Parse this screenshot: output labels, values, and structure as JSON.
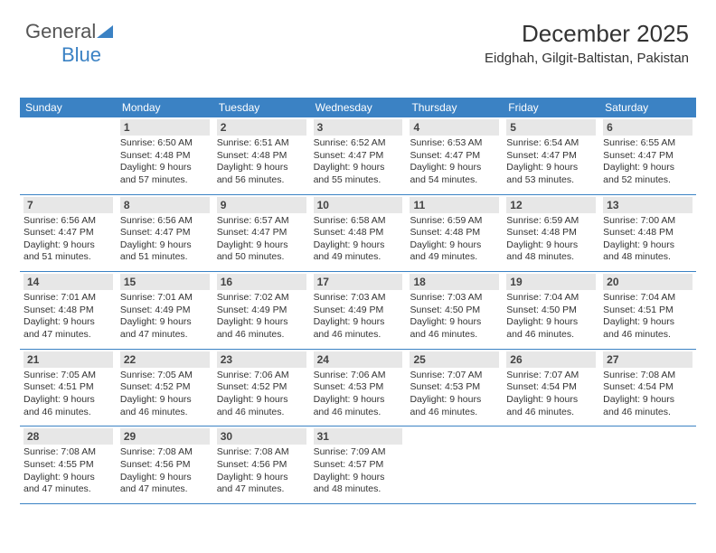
{
  "logo": {
    "part1": "General",
    "part2": "Blue"
  },
  "title": "December 2025",
  "location": "Eidghah, Gilgit-Baltistan, Pakistan",
  "colors": {
    "header_bg": "#3b82c4",
    "daynum_bg": "#e7e7e7",
    "text": "#333333",
    "logo_gray": "#555555"
  },
  "weekdays": [
    "Sunday",
    "Monday",
    "Tuesday",
    "Wednesday",
    "Thursday",
    "Friday",
    "Saturday"
  ],
  "weeks": [
    [
      {
        "num": "",
        "lines": []
      },
      {
        "num": "1",
        "lines": [
          "Sunrise: 6:50 AM",
          "Sunset: 4:48 PM",
          "Daylight: 9 hours",
          "and 57 minutes."
        ]
      },
      {
        "num": "2",
        "lines": [
          "Sunrise: 6:51 AM",
          "Sunset: 4:48 PM",
          "Daylight: 9 hours",
          "and 56 minutes."
        ]
      },
      {
        "num": "3",
        "lines": [
          "Sunrise: 6:52 AM",
          "Sunset: 4:47 PM",
          "Daylight: 9 hours",
          "and 55 minutes."
        ]
      },
      {
        "num": "4",
        "lines": [
          "Sunrise: 6:53 AM",
          "Sunset: 4:47 PM",
          "Daylight: 9 hours",
          "and 54 minutes."
        ]
      },
      {
        "num": "5",
        "lines": [
          "Sunrise: 6:54 AM",
          "Sunset: 4:47 PM",
          "Daylight: 9 hours",
          "and 53 minutes."
        ]
      },
      {
        "num": "6",
        "lines": [
          "Sunrise: 6:55 AM",
          "Sunset: 4:47 PM",
          "Daylight: 9 hours",
          "and 52 minutes."
        ]
      }
    ],
    [
      {
        "num": "7",
        "lines": [
          "Sunrise: 6:56 AM",
          "Sunset: 4:47 PM",
          "Daylight: 9 hours",
          "and 51 minutes."
        ]
      },
      {
        "num": "8",
        "lines": [
          "Sunrise: 6:56 AM",
          "Sunset: 4:47 PM",
          "Daylight: 9 hours",
          "and 51 minutes."
        ]
      },
      {
        "num": "9",
        "lines": [
          "Sunrise: 6:57 AM",
          "Sunset: 4:47 PM",
          "Daylight: 9 hours",
          "and 50 minutes."
        ]
      },
      {
        "num": "10",
        "lines": [
          "Sunrise: 6:58 AM",
          "Sunset: 4:48 PM",
          "Daylight: 9 hours",
          "and 49 minutes."
        ]
      },
      {
        "num": "11",
        "lines": [
          "Sunrise: 6:59 AM",
          "Sunset: 4:48 PM",
          "Daylight: 9 hours",
          "and 49 minutes."
        ]
      },
      {
        "num": "12",
        "lines": [
          "Sunrise: 6:59 AM",
          "Sunset: 4:48 PM",
          "Daylight: 9 hours",
          "and 48 minutes."
        ]
      },
      {
        "num": "13",
        "lines": [
          "Sunrise: 7:00 AM",
          "Sunset: 4:48 PM",
          "Daylight: 9 hours",
          "and 48 minutes."
        ]
      }
    ],
    [
      {
        "num": "14",
        "lines": [
          "Sunrise: 7:01 AM",
          "Sunset: 4:48 PM",
          "Daylight: 9 hours",
          "and 47 minutes."
        ]
      },
      {
        "num": "15",
        "lines": [
          "Sunrise: 7:01 AM",
          "Sunset: 4:49 PM",
          "Daylight: 9 hours",
          "and 47 minutes."
        ]
      },
      {
        "num": "16",
        "lines": [
          "Sunrise: 7:02 AM",
          "Sunset: 4:49 PM",
          "Daylight: 9 hours",
          "and 46 minutes."
        ]
      },
      {
        "num": "17",
        "lines": [
          "Sunrise: 7:03 AM",
          "Sunset: 4:49 PM",
          "Daylight: 9 hours",
          "and 46 minutes."
        ]
      },
      {
        "num": "18",
        "lines": [
          "Sunrise: 7:03 AM",
          "Sunset: 4:50 PM",
          "Daylight: 9 hours",
          "and 46 minutes."
        ]
      },
      {
        "num": "19",
        "lines": [
          "Sunrise: 7:04 AM",
          "Sunset: 4:50 PM",
          "Daylight: 9 hours",
          "and 46 minutes."
        ]
      },
      {
        "num": "20",
        "lines": [
          "Sunrise: 7:04 AM",
          "Sunset: 4:51 PM",
          "Daylight: 9 hours",
          "and 46 minutes."
        ]
      }
    ],
    [
      {
        "num": "21",
        "lines": [
          "Sunrise: 7:05 AM",
          "Sunset: 4:51 PM",
          "Daylight: 9 hours",
          "and 46 minutes."
        ]
      },
      {
        "num": "22",
        "lines": [
          "Sunrise: 7:05 AM",
          "Sunset: 4:52 PM",
          "Daylight: 9 hours",
          "and 46 minutes."
        ]
      },
      {
        "num": "23",
        "lines": [
          "Sunrise: 7:06 AM",
          "Sunset: 4:52 PM",
          "Daylight: 9 hours",
          "and 46 minutes."
        ]
      },
      {
        "num": "24",
        "lines": [
          "Sunrise: 7:06 AM",
          "Sunset: 4:53 PM",
          "Daylight: 9 hours",
          "and 46 minutes."
        ]
      },
      {
        "num": "25",
        "lines": [
          "Sunrise: 7:07 AM",
          "Sunset: 4:53 PM",
          "Daylight: 9 hours",
          "and 46 minutes."
        ]
      },
      {
        "num": "26",
        "lines": [
          "Sunrise: 7:07 AM",
          "Sunset: 4:54 PM",
          "Daylight: 9 hours",
          "and 46 minutes."
        ]
      },
      {
        "num": "27",
        "lines": [
          "Sunrise: 7:08 AM",
          "Sunset: 4:54 PM",
          "Daylight: 9 hours",
          "and 46 minutes."
        ]
      }
    ],
    [
      {
        "num": "28",
        "lines": [
          "Sunrise: 7:08 AM",
          "Sunset: 4:55 PM",
          "Daylight: 9 hours",
          "and 47 minutes."
        ]
      },
      {
        "num": "29",
        "lines": [
          "Sunrise: 7:08 AM",
          "Sunset: 4:56 PM",
          "Daylight: 9 hours",
          "and 47 minutes."
        ]
      },
      {
        "num": "30",
        "lines": [
          "Sunrise: 7:08 AM",
          "Sunset: 4:56 PM",
          "Daylight: 9 hours",
          "and 47 minutes."
        ]
      },
      {
        "num": "31",
        "lines": [
          "Sunrise: 7:09 AM",
          "Sunset: 4:57 PM",
          "Daylight: 9 hours",
          "and 48 minutes."
        ]
      },
      {
        "num": "",
        "lines": []
      },
      {
        "num": "",
        "lines": []
      },
      {
        "num": "",
        "lines": []
      }
    ]
  ]
}
